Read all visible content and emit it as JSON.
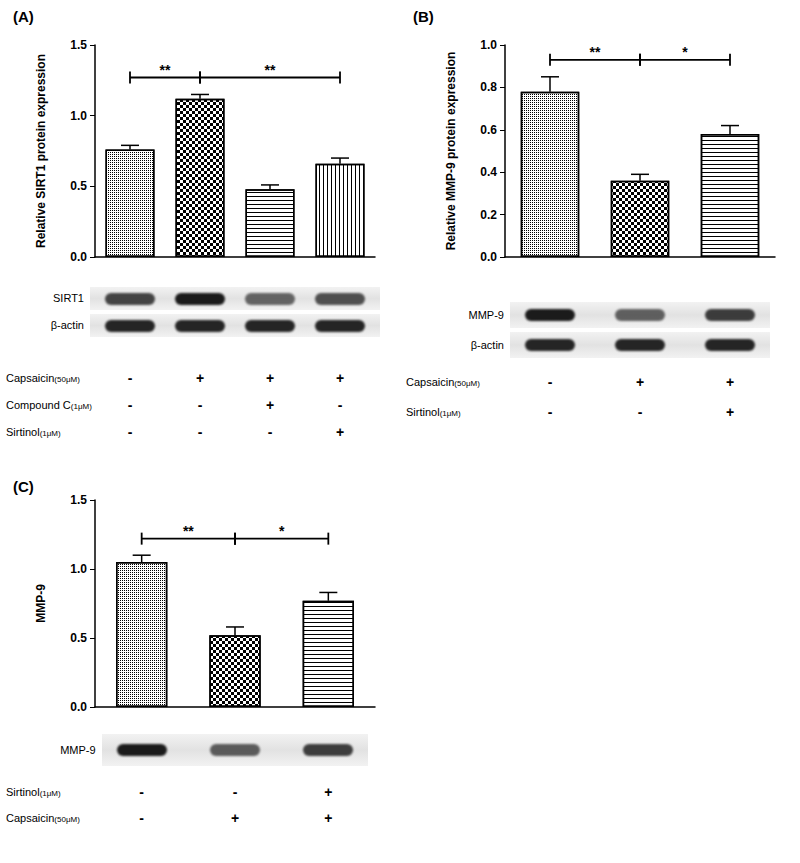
{
  "chart_data": [
    {
      "type": "bar",
      "title": "(A)",
      "y_label": "Relative SIRT1 protein expression",
      "categories": [
        null,
        null,
        null,
        null
      ],
      "values": [
        0.76,
        1.12,
        0.48,
        0.66
      ],
      "errors": [
        0.03,
        0.03,
        0.03,
        0.04
      ],
      "color": "#ffffff",
      "ylim": [
        0,
        1.5
      ],
      "yticks": [
        {
          "value": 0,
          "label": "0.0"
        },
        {
          "value": 0.5,
          "label": "0.5"
        },
        {
          "value": 1,
          "label": "1.0"
        },
        {
          "value": 1.5,
          "label": "1.5"
        }
      ],
      "tick_labels": "y",
      "comparisons": [
        {
          "bars": [
            0,
            1
          ],
          "label": "**"
        },
        {
          "bars": [
            1,
            3
          ],
          "label": "**"
        }
      ],
      "blots": [
        "SIRT1",
        "β-actin"
      ],
      "treatments": [
        {
          "label": "Capsaicin",
          "dose": "(50μM)",
          "signs": [
            "-",
            "+",
            "+",
            "+"
          ]
        },
        {
          "label": "Compound C",
          "dose": "(1μM)",
          "signs": [
            "-",
            "-",
            "+",
            "-"
          ]
        },
        {
          "label": "Sirtinol",
          "dose": "(1μM)",
          "signs": [
            "-",
            "-",
            "-",
            "+"
          ]
        }
      ]
    },
    {
      "type": "bar",
      "title": "(B)",
      "y_label": "Relative MMP-9 protein expression",
      "categories": [
        null,
        null,
        null
      ],
      "values": [
        0.78,
        0.36,
        0.58
      ],
      "errors": [
        0.07,
        0.03,
        0.04
      ],
      "color": "#ffffff",
      "ylim": [
        0,
        1.0
      ],
      "yticks": [
        {
          "value": 0,
          "label": "0.0"
        },
        {
          "value": 0.2,
          "label": "0.2"
        },
        {
          "value": 0.4,
          "label": "0.4"
        },
        {
          "value": 0.6,
          "label": "0.6"
        },
        {
          "value": 0.8,
          "label": "0.8"
        },
        {
          "value": 1.0,
          "label": "1.0"
        }
      ],
      "tick_labels": "y",
      "comparisons": [
        {
          "bars": [
            0,
            1
          ],
          "label": "**"
        },
        {
          "bars": [
            1,
            2
          ],
          "label": "*"
        }
      ],
      "blots": [
        "MMP-9",
        "β-actin"
      ],
      "treatments": [
        {
          "label": "Capsaicin",
          "dose": "(50μM)",
          "signs": [
            "-",
            "+",
            "+"
          ]
        },
        {
          "label": "Sirtinol",
          "dose": "(1μM)",
          "signs": [
            "-",
            "-",
            "+"
          ]
        }
      ]
    },
    {
      "type": "bar",
      "title": "(C)",
      "y_label": "MMP-9",
      "categories": [
        null,
        null,
        null
      ],
      "values": [
        1.05,
        0.52,
        0.77
      ],
      "errors": [
        0.05,
        0.06,
        0.06
      ],
      "color": "#ffffff",
      "ylim": [
        0,
        1.5
      ],
      "yticks": [
        {
          "value": 0,
          "label": "0.0"
        },
        {
          "value": 0.5,
          "label": "0.5"
        },
        {
          "value": 1,
          "label": "1.0"
        },
        {
          "value": 1.5,
          "label": "1.5"
        }
      ],
      "tick_labels": "y",
      "comparisons": [
        {
          "bars": [
            0,
            1
          ],
          "label": "**"
        },
        {
          "bars": [
            1,
            2
          ],
          "label": "*"
        }
      ],
      "blots": [
        "MMP-9"
      ],
      "treatments": [
        {
          "label": "Sirtinol",
          "dose": "(1μM)",
          "signs": [
            "-",
            "-",
            "+"
          ]
        },
        {
          "label": "Capsaicin",
          "dose": "(50μM)",
          "signs": [
            "-",
            "+",
            "+"
          ]
        }
      ]
    }
  ]
}
